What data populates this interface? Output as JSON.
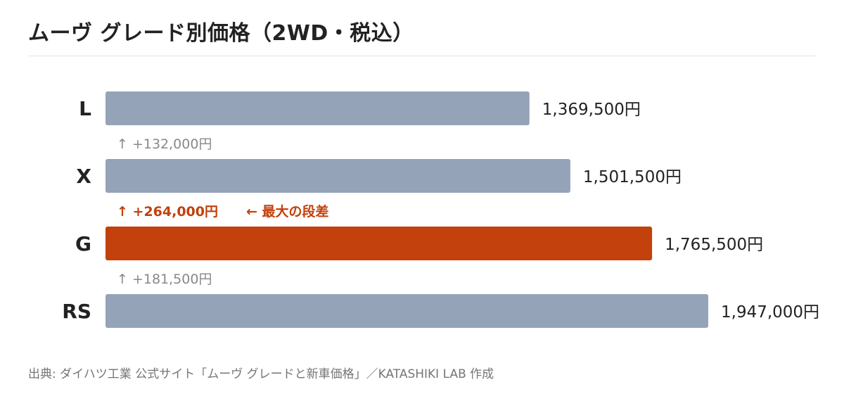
{
  "title": "ムーヴ グレード別価格（2WD・税込）",
  "source": "出典: ダイハツ工業 公式サイト「ムーヴ グレードと新車価格」／KATASHIKI LAB 作成",
  "colors": {
    "bar_default": "#94a3b8",
    "bar_highlight": "#c2410c",
    "step_default": "#888888",
    "step_highlight": "#c2410c",
    "label": "#222222"
  },
  "chart_data": {
    "type": "bar",
    "orientation": "horizontal",
    "categories": [
      "L",
      "X",
      "G",
      "RS"
    ],
    "values": [
      1369500,
      1501500,
      1765500,
      1947000
    ],
    "value_labels": [
      "1,369,500円",
      "1,501,500円",
      "1,765,500円",
      "1,947,000円"
    ],
    "highlight_category": "G",
    "xlim": [
      0,
      1947000
    ],
    "grid": false,
    "legend": "none",
    "steps": [
      {
        "between": [
          "L",
          "X"
        ],
        "text": "↑ +132,000円",
        "highlight": false
      },
      {
        "between": [
          "X",
          "G"
        ],
        "text": "↑ +264,000円",
        "note": "← 最大の段差",
        "highlight": true
      },
      {
        "between": [
          "G",
          "RS"
        ],
        "text": "↑ +181,500円",
        "highlight": false
      }
    ]
  }
}
